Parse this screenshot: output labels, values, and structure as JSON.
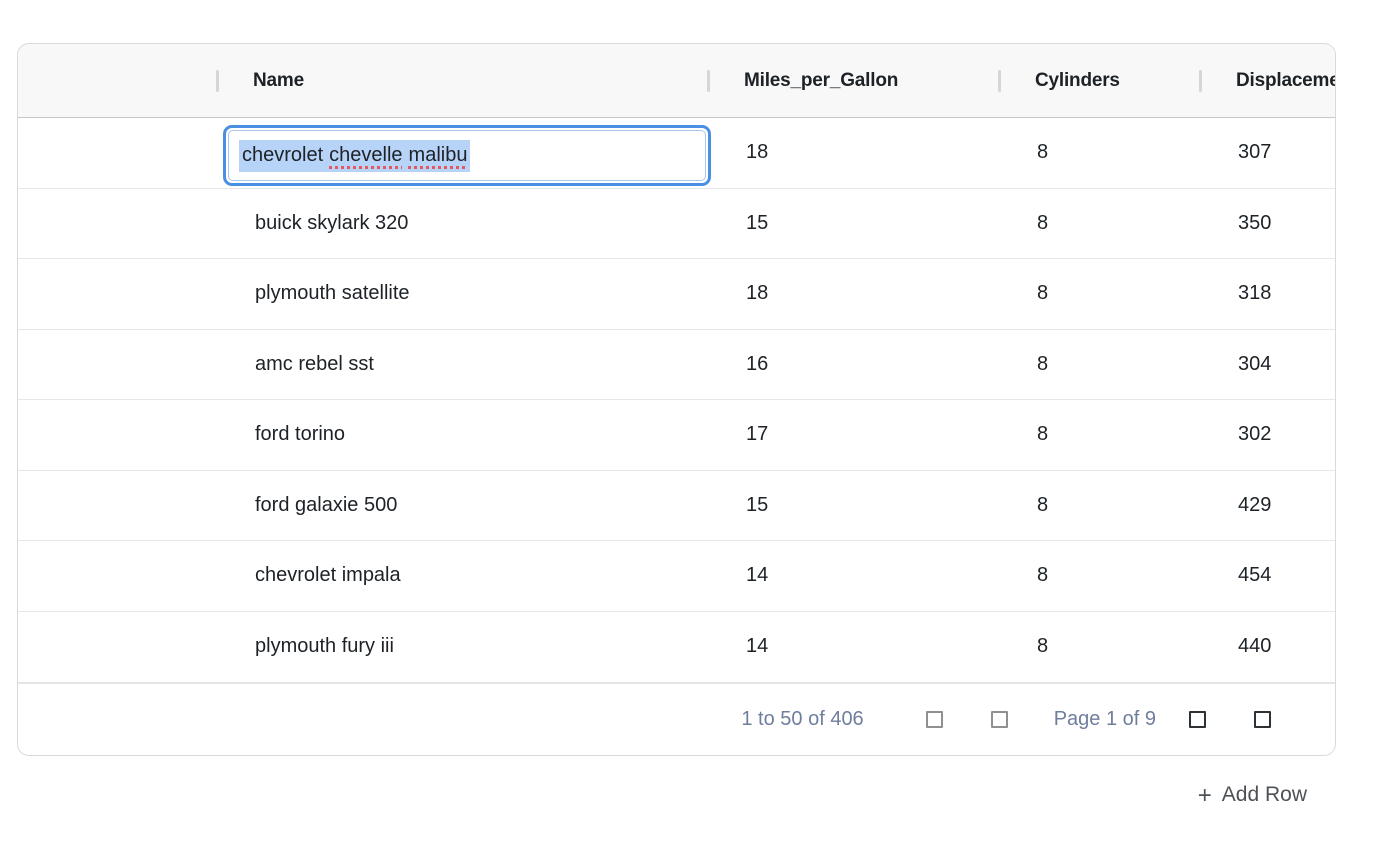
{
  "grid": {
    "columns": [
      {
        "id": "row_handle",
        "label": ""
      },
      {
        "id": "name",
        "label": "Name"
      },
      {
        "id": "miles_per_gallon",
        "label": "Miles_per_Gallon"
      },
      {
        "id": "cylinders",
        "label": "Cylinders"
      },
      {
        "id": "displacement",
        "label": "Displacement"
      }
    ],
    "rows": [
      {
        "name": "chevrolet chevelle malibu",
        "miles_per_gallon": 18,
        "cylinders": 8,
        "displacement": 307
      },
      {
        "name": "buick skylark 320",
        "miles_per_gallon": 15,
        "cylinders": 8,
        "displacement": 350
      },
      {
        "name": "plymouth satellite",
        "miles_per_gallon": 18,
        "cylinders": 8,
        "displacement": 318
      },
      {
        "name": "amc rebel sst",
        "miles_per_gallon": 16,
        "cylinders": 8,
        "displacement": 304
      },
      {
        "name": "ford torino",
        "miles_per_gallon": 17,
        "cylinders": 8,
        "displacement": 302
      },
      {
        "name": "ford galaxie 500",
        "miles_per_gallon": 15,
        "cylinders": 8,
        "displacement": 429
      },
      {
        "name": "chevrolet impala",
        "miles_per_gallon": 14,
        "cylinders": 8,
        "displacement": 454
      },
      {
        "name": "plymouth fury iii",
        "miles_per_gallon": 14,
        "cylinders": 8,
        "displacement": 440
      }
    ],
    "editor": {
      "row_index": 0,
      "column": "name",
      "value": "chevrolet chevelle malibu",
      "words": [
        {
          "text": "chevrolet",
          "misspelled": false
        },
        {
          "text": "chevelle",
          "misspelled": true
        },
        {
          "text": "malibu",
          "misspelled": true
        }
      ],
      "selection_color": "#b7d3f7",
      "focus_ring_color": "#4a8fe2",
      "spellcheck_underline_color": "#e25a5e"
    }
  },
  "pagination": {
    "summary": "1 to 50 of 406",
    "page_label": "Page 1 of 9",
    "buttons": [
      {
        "name": "first-page",
        "icon": "square-placeholder-icon",
        "enabled": false
      },
      {
        "name": "previous-page",
        "icon": "square-placeholder-icon",
        "enabled": false
      },
      {
        "name": "next-page",
        "icon": "square-placeholder-icon",
        "enabled": true
      },
      {
        "name": "last-page",
        "icon": "square-placeholder-icon",
        "enabled": true
      }
    ],
    "text_color": "#6f7e9d"
  },
  "footer": {
    "add_row_icon": "+",
    "add_row_label": "Add Row"
  },
  "colors": {
    "header_bg": "#f8f8f8",
    "body_text": "#1d2227",
    "row_border": "#e6e7e9",
    "header_border": "#c4c8cc",
    "card_border": "#d9d9d9",
    "disabled_icon": "#909090",
    "enabled_icon": "#2d3237"
  }
}
